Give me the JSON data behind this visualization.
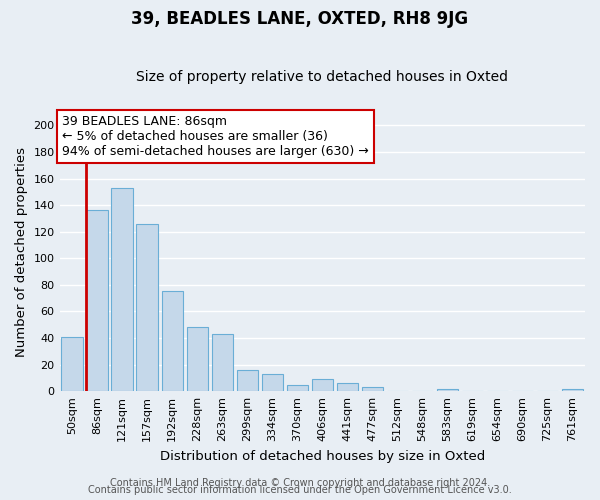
{
  "title": "39, BEADLES LANE, OXTED, RH8 9JG",
  "subtitle": "Size of property relative to detached houses in Oxted",
  "xlabel": "Distribution of detached houses by size in Oxted",
  "ylabel": "Number of detached properties",
  "bar_labels": [
    "50sqm",
    "86sqm",
    "121sqm",
    "157sqm",
    "192sqm",
    "228sqm",
    "263sqm",
    "299sqm",
    "334sqm",
    "370sqm",
    "406sqm",
    "441sqm",
    "477sqm",
    "512sqm",
    "548sqm",
    "583sqm",
    "619sqm",
    "654sqm",
    "690sqm",
    "725sqm",
    "761sqm"
  ],
  "bar_values": [
    41,
    136,
    153,
    126,
    75,
    48,
    43,
    16,
    13,
    5,
    9,
    6,
    3,
    0,
    0,
    2,
    0,
    0,
    0,
    0,
    2
  ],
  "bar_color": "#c5d8ea",
  "bar_edge_color": "#6aaed6",
  "highlight_bar_index": 1,
  "highlight_color": "#cc0000",
  "ylim": [
    0,
    210
  ],
  "yticks": [
    0,
    20,
    40,
    60,
    80,
    100,
    120,
    140,
    160,
    180,
    200
  ],
  "annotation_line1": "39 BEADLES LANE: 86sqm",
  "annotation_line2": "← 5% of detached houses are smaller (36)",
  "annotation_line3": "94% of semi-detached houses are larger (630) →",
  "footer_line1": "Contains HM Land Registry data © Crown copyright and database right 2024.",
  "footer_line2": "Contains public sector information licensed under the Open Government Licence v3.0.",
  "background_color": "#e8eef4",
  "grid_color": "#ffffff",
  "title_fontsize": 12,
  "subtitle_fontsize": 10,
  "axis_label_fontsize": 9.5,
  "tick_fontsize": 8,
  "annotation_fontsize": 9,
  "footer_fontsize": 7
}
